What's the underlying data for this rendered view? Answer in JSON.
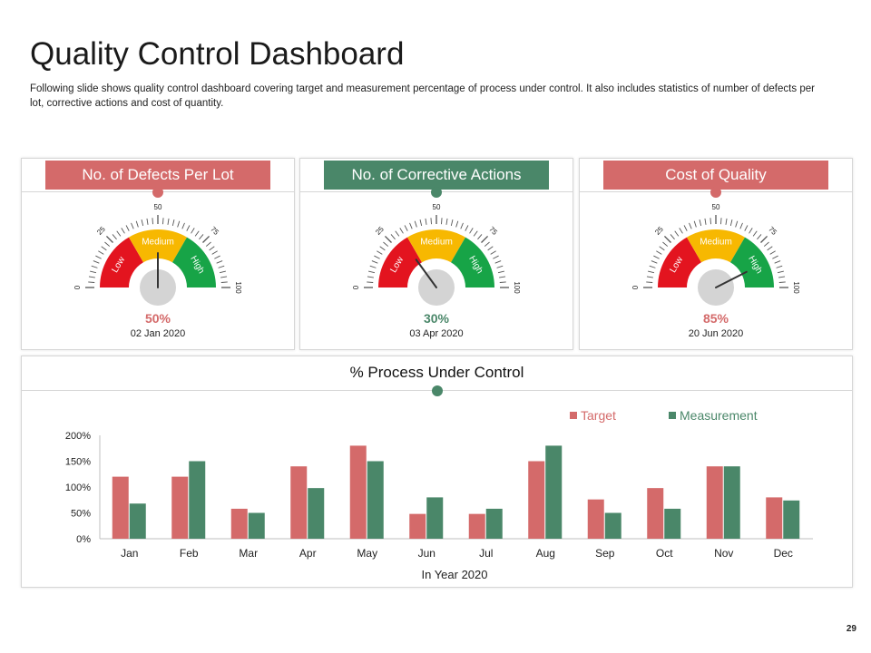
{
  "page": {
    "title": "Quality Control Dashboard",
    "description": "Following slide shows quality control dashboard covering target and measurement percentage of process under control. It also includes statistics of number of defects per lot, corrective actions and cost of quantity.",
    "page_number": "29"
  },
  "colors": {
    "red": "#d46a6a",
    "green": "#4a8769",
    "gauge_red": "#e3141f",
    "gauge_yellow": "#f7b801",
    "gauge_green": "#17a447",
    "hub": "#d4d4d4"
  },
  "gauge_scale": {
    "labels": [
      "0",
      "25",
      "50",
      "75",
      "100"
    ],
    "bands": [
      "Low",
      "Medium",
      "High"
    ]
  },
  "gauges": [
    {
      "title": "No. of Defects Per Lot",
      "value": 50,
      "value_label": "50%",
      "date": "02 Jan 2020",
      "color": "#d46a6a"
    },
    {
      "title": "No. of Corrective Actions",
      "value": 30,
      "value_label": "30%",
      "date": "03 Apr 2020",
      "color": "#4a8769"
    },
    {
      "title": "Cost of Quality",
      "value": 85,
      "value_label": "85%",
      "date": "20 Jun 2020",
      "color": "#d46a6a"
    }
  ],
  "chart_data": {
    "type": "bar",
    "title": "% Process Under Control",
    "xlabel": "In Year 2020",
    "ylabel": "",
    "categories": [
      "Jan",
      "Feb",
      "Mar",
      "Apr",
      "May",
      "Jun",
      "Jul",
      "Aug",
      "Sep",
      "Oct",
      "Nov",
      "Dec"
    ],
    "series": [
      {
        "name": "Target",
        "color": "#d46a6a",
        "values": [
          120,
          120,
          58,
          140,
          180,
          48,
          48,
          150,
          76,
          98,
          140,
          80
        ]
      },
      {
        "name": "Measurement",
        "color": "#4a8769",
        "values": [
          68,
          150,
          50,
          98,
          150,
          80,
          58,
          180,
          50,
          58,
          140,
          74
        ]
      }
    ],
    "ylim": [
      0,
      200
    ],
    "yticks": [
      "0%",
      "50%",
      "100%",
      "150%",
      "200%"
    ],
    "legend": "top-right",
    "grid": false
  }
}
